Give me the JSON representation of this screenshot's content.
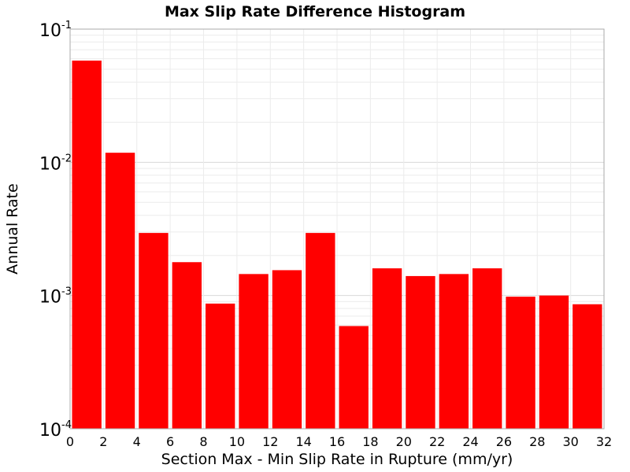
{
  "chart_data": {
    "type": "bar",
    "title": "Max Slip Rate Difference Histogram",
    "xlabel": "Section Max - Min Slip Rate in Rupture (mm/yr)",
    "ylabel": "Annual Rate",
    "xlim": [
      0,
      32
    ],
    "ylim": [
      0.0001,
      0.1
    ],
    "yscale": "log",
    "bin_width": 2,
    "bin_starts": [
      0,
      2,
      4,
      6,
      8,
      10,
      12,
      14,
      16,
      18,
      20,
      22,
      24,
      26,
      28,
      30
    ],
    "values": [
      0.058,
      0.0118,
      0.00295,
      0.00178,
      0.00087,
      0.00145,
      0.00155,
      0.00295,
      0.00059,
      0.0016,
      0.0014,
      0.00145,
      0.0016,
      0.00098,
      0.001,
      0.00086
    ],
    "xticks": [
      "0",
      "2",
      "4",
      "6",
      "8",
      "10",
      "12",
      "14",
      "16",
      "18",
      "20",
      "22",
      "24",
      "26",
      "28",
      "30",
      "32"
    ],
    "yticks": [
      {
        "value": 0.1,
        "base": "10",
        "exp": "-1"
      },
      {
        "value": 0.01,
        "base": "10",
        "exp": "-2"
      },
      {
        "value": 0.001,
        "base": "10",
        "exp": "-3"
      },
      {
        "value": 0.0001,
        "base": "10",
        "exp": "-4"
      }
    ],
    "bar_color": "#ff0000",
    "grid": true
  }
}
